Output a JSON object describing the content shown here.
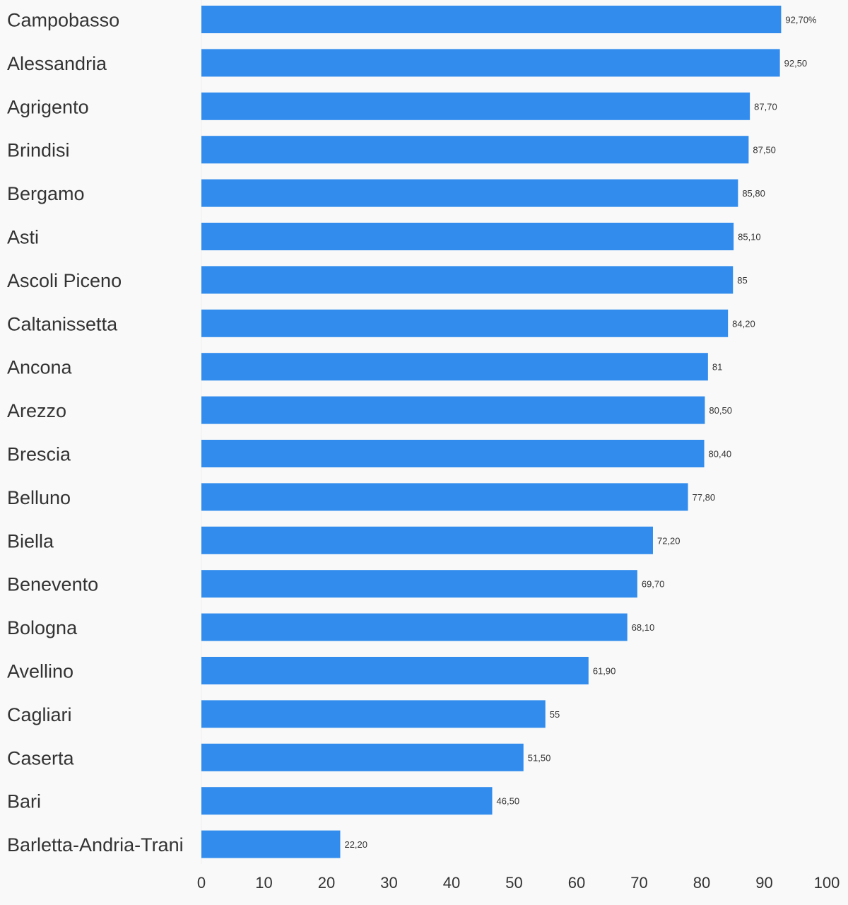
{
  "chart_data": {
    "type": "bar",
    "orientation": "horizontal",
    "categories": [
      "Campobasso",
      "Alessandria",
      "Agrigento",
      "Brindisi",
      "Bergamo",
      "Asti",
      "Ascoli Piceno",
      "Caltanissetta",
      "Ancona",
      "Arezzo",
      "Brescia",
      "Belluno",
      "Biella",
      "Benevento",
      "Bologna",
      "Avellino",
      "Cagliari",
      "Caserta",
      "Bari",
      "Barletta-Andria-Trani"
    ],
    "values": [
      92.7,
      92.5,
      87.7,
      87.5,
      85.8,
      85.1,
      85,
      84.2,
      81,
      80.5,
      80.4,
      77.8,
      72.2,
      69.7,
      68.1,
      61.9,
      55,
      51.5,
      46.5,
      22.2
    ],
    "value_labels": [
      "92,70%",
      "92,50",
      "87,70",
      "87,50",
      "85,80",
      "85,10",
      "85",
      "84,20",
      "81",
      "80,50",
      "80,40",
      "77,80",
      "72,20",
      "69,70",
      "68,10",
      "61,90",
      "55",
      "51,50",
      "46,50",
      "22,20"
    ],
    "xticks": [
      "0",
      "10",
      "20",
      "30",
      "40",
      "50",
      "60",
      "70",
      "80",
      "90",
      "100"
    ],
    "xlim": [
      0,
      100
    ],
    "title": "",
    "xlabel": "",
    "ylabel": "",
    "grid": false,
    "legend": "none",
    "bar_color": "#318ced",
    "background": "#f9f9f9"
  }
}
